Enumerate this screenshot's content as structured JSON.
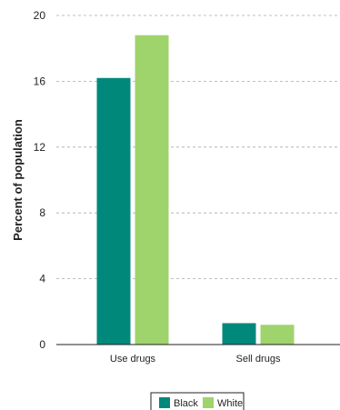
{
  "chart_data": {
    "type": "bar",
    "categories": [
      "Use drugs",
      "Sell drugs"
    ],
    "series": [
      {
        "name": "Black",
        "values": [
          16.2,
          1.3
        ],
        "color": "#00897b"
      },
      {
        "name": "White",
        "values": [
          18.8,
          1.2
        ],
        "color": "#9fd36b"
      }
    ],
    "ylabel": "Percent of population",
    "ylim": [
      0,
      20
    ],
    "yticks": [
      0,
      4,
      8,
      12,
      16,
      20
    ],
    "grid": "dashed horizontal",
    "legend": "bottom-center"
  }
}
